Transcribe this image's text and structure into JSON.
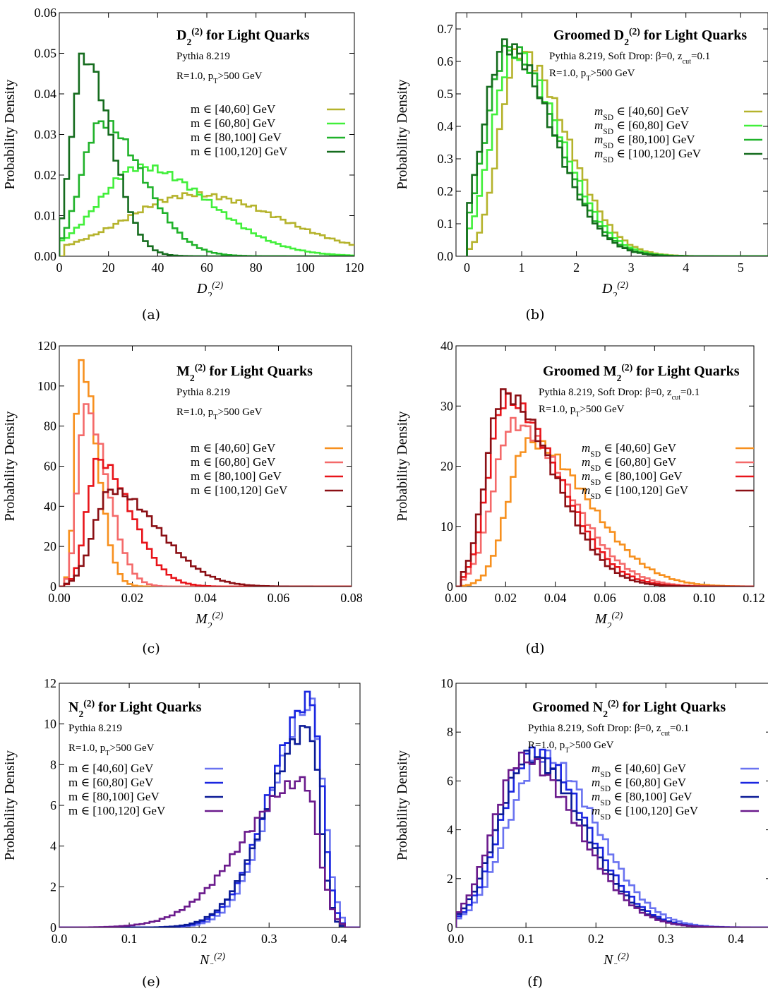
{
  "chart_data": [
    {
      "type": "line",
      "title": "D",
      "title_sup": "(2)",
      "title_sub": "2",
      "title_rest": " for Light Quarks",
      "info": [
        "Pythia 8.219",
        "R=1.0, p",
        "T",
        ">500 GeV"
      ],
      "xlabel": "D",
      "xlabel_sup": "(2)",
      "xlabel_sub": "2",
      "ylabel": "Probability Density",
      "xlim": [
        0,
        120
      ],
      "ylim": [
        0,
        0.06
      ],
      "xticks": [
        0,
        20,
        40,
        60,
        80,
        100,
        120
      ],
      "xtick_labels": [
        "0",
        "20",
        "40",
        "60",
        "80",
        "100",
        "120"
      ],
      "yticks": [
        0,
        0.01,
        0.02,
        0.03,
        0.04,
        0.05,
        0.06
      ],
      "ytick_labels": [
        "0.00",
        "0.01",
        "0.02",
        "0.03",
        "0.04",
        "0.05",
        "0.06"
      ],
      "caption": "(a)",
      "series": [
        {
          "name": "m ∈ [40,60] GeV",
          "color": "#b5b32c",
          "peak": 55,
          "width_l": 28,
          "width_r": 35,
          "height": 0.0152,
          "start": 2,
          "end": 120
        },
        {
          "name": "m ∈ [60,80] GeV",
          "color": "#41ef3a",
          "peak": 33,
          "width_l": 17,
          "width_r": 28,
          "height": 0.022,
          "start": 1,
          "end": 120
        },
        {
          "name": "m ∈ [80,100] GeV",
          "color": "#20b22a",
          "peak": 17,
          "width_l": 8,
          "width_r": 17,
          "height": 0.033,
          "start": 1,
          "end": 120
        },
        {
          "name": "m ∈ [100,120] GeV",
          "color": "#156c1e",
          "peak": 10,
          "width_l": 5,
          "width_r": 11,
          "height": 0.049,
          "start": 0,
          "end": 120
        }
      ]
    },
    {
      "type": "line",
      "title": "Groomed D",
      "title_sup": "(2)",
      "title_sub": "2",
      "title_rest": " for Light Quarks",
      "info": [
        "Pythia 8.219, Soft Drop: β=0, z",
        "cut",
        "=0.1",
        "R=1.0, p",
        "T",
        ">500 GeV"
      ],
      "xlabel": "D",
      "xlabel_sup": "(2)",
      "xlabel_sub": "2",
      "ylabel": "Probability Density",
      "xlim": [
        -0.2,
        5.5
      ],
      "ylim": [
        0,
        0.75
      ],
      "xticks": [
        0,
        1,
        2,
        3,
        4,
        5
      ],
      "xtick_labels": [
        "0",
        "1",
        "2",
        "3",
        "4",
        "5"
      ],
      "yticks": [
        0,
        0.1,
        0.2,
        0.3,
        0.4,
        0.5,
        0.6,
        0.7
      ],
      "ytick_labels": [
        "0.0",
        "0.1",
        "0.2",
        "0.3",
        "0.4",
        "0.5",
        "0.6",
        "0.7"
      ],
      "caption": "(b)",
      "series": [
        {
          "name": "m_SD ∈ [40,60] GeV",
          "color": "#b5b32c",
          "peak": 0.95,
          "width_l": 0.35,
          "width_r": 0.85,
          "height": 0.63,
          "start": 0,
          "end": 5.5
        },
        {
          "name": "m_SD ∈ [60,80] GeV",
          "color": "#41ef3a",
          "peak": 0.85,
          "width_l": 0.4,
          "width_r": 0.85,
          "height": 0.62,
          "start": 0,
          "end": 5.5
        },
        {
          "name": "m_SD ∈ [80,100] GeV",
          "color": "#20b22a",
          "peak": 0.75,
          "width_l": 0.4,
          "width_r": 0.85,
          "height": 0.64,
          "start": 0,
          "end": 5.5
        },
        {
          "name": "m_SD ∈ [100,120] GeV",
          "color": "#156c1e",
          "peak": 0.7,
          "width_l": 0.4,
          "width_r": 0.85,
          "height": 0.65,
          "start": 0,
          "end": 5.5
        }
      ]
    },
    {
      "type": "line",
      "title": "M",
      "title_sup": "(2)",
      "title_sub": "2",
      "title_rest": " for Light Quarks",
      "info": [
        "Pythia 8.219",
        "R=1.0, p",
        "T",
        ">500 GeV"
      ],
      "xlabel": "M",
      "xlabel_sup": "(2)",
      "xlabel_sub": "2",
      "ylabel": "Probability Density",
      "xlim": [
        0,
        0.08
      ],
      "ylim": [
        0,
        120
      ],
      "xticks": [
        0,
        0.02,
        0.04,
        0.06,
        0.08
      ],
      "xtick_labels": [
        "0.00",
        "0.02",
        "0.04",
        "0.06",
        "0.08"
      ],
      "yticks": [
        0,
        20,
        40,
        60,
        80,
        100,
        120
      ],
      "ytick_labels": [
        "0",
        "20",
        "40",
        "60",
        "80",
        "100",
        "120"
      ],
      "caption": "(c)",
      "series": [
        {
          "name": "m ∈ [40,60] GeV",
          "color": "#f7901e",
          "peak": 0.0058,
          "width_l": 0.0015,
          "width_r": 0.0045,
          "height": 112,
          "start": 0.001,
          "end": 0.08
        },
        {
          "name": "m ∈ [60,80] GeV",
          "color": "#f46a6a",
          "peak": 0.007,
          "width_l": 0.002,
          "width_r": 0.006,
          "height": 89,
          "start": 0.001,
          "end": 0.08
        },
        {
          "name": "m ∈ [80,100] GeV",
          "color": "#e8141a",
          "peak": 0.0105,
          "width_l": 0.003,
          "width_r": 0.009,
          "height": 63,
          "start": 0.001,
          "end": 0.08
        },
        {
          "name": "m ∈ [100,120] GeV",
          "color": "#8b0f14",
          "peak": 0.014,
          "width_l": 0.0045,
          "width_r": 0.013,
          "height": 48,
          "start": 0.001,
          "end": 0.08
        }
      ]
    },
    {
      "type": "line",
      "title": "Groomed M",
      "title_sup": "(2)",
      "title_sub": "2",
      "title_rest": " for Light Quarks",
      "info": [
        "Pythia 8.219, Soft Drop: β=0, z",
        "cut",
        "=0.1",
        "R=1.0, p",
        "T",
        ">500 GeV"
      ],
      "xlabel": "M",
      "xlabel_sup": "(2)",
      "xlabel_sub": "2",
      "ylabel": "Probability Density",
      "xlim": [
        0,
        0.12
      ],
      "ylim": [
        0,
        40
      ],
      "xticks": [
        0,
        0.02,
        0.04,
        0.06,
        0.08,
        0.1,
        0.12
      ],
      "xtick_labels": [
        "0.00",
        "0.02",
        "0.04",
        "0.06",
        "0.08",
        "0.10",
        "0.12"
      ],
      "yticks": [
        0,
        10,
        20,
        30,
        40
      ],
      "ytick_labels": [
        "0",
        "10",
        "20",
        "30",
        "40"
      ],
      "caption": "(d)",
      "series": [
        {
          "name": "m_SD ∈ [40,60] GeV",
          "color": "#f7901e",
          "peak": 0.029,
          "width_l": 0.008,
          "width_r": 0.024,
          "height": 24,
          "start": 0.002,
          "end": 0.12
        },
        {
          "name": "m_SD ∈ [60,80] GeV",
          "color": "#f46a6a",
          "peak": 0.023,
          "width_l": 0.008,
          "width_r": 0.022,
          "height": 27,
          "start": 0.002,
          "end": 0.12
        },
        {
          "name": "m_SD ∈ [80,100] GeV",
          "color": "#e8141a",
          "peak": 0.02,
          "width_l": 0.007,
          "width_r": 0.021,
          "height": 31,
          "start": 0.002,
          "end": 0.12
        },
        {
          "name": "m_SD ∈ [100,120] GeV",
          "color": "#8b0f14",
          "peak": 0.019,
          "width_l": 0.007,
          "width_r": 0.02,
          "height": 32,
          "start": 0.002,
          "end": 0.12
        }
      ]
    },
    {
      "type": "line",
      "title": "N",
      "title_sup": "(2)",
      "title_sub": "2",
      "title_rest": " for Light Quarks",
      "info": [
        "Pythia 8.219",
        "R=1.0, p",
        "T",
        ">500 GeV"
      ],
      "xlabel": "N",
      "xlabel_sup": "(2)",
      "xlabel_sub": "2",
      "ylabel": "Probability Density",
      "xlim": [
        0,
        0.43
      ],
      "ylim": [
        0,
        12
      ],
      "xticks": [
        0,
        0.1,
        0.2,
        0.3,
        0.4
      ],
      "xtick_labels": [
        "0.0",
        "0.1",
        "0.2",
        "0.3",
        "0.4"
      ],
      "yticks": [
        0,
        2,
        4,
        6,
        8,
        10,
        12
      ],
      "ytick_labels": [
        "0",
        "2",
        "4",
        "6",
        "8",
        "10",
        "12"
      ],
      "caption": "(e)",
      "series": [
        {
          "name": "m ∈ [40,60] GeV",
          "color": "#6a73f0",
          "peak": 0.36,
          "width_l": 0.055,
          "width_r": 0.018,
          "height": 10.9,
          "start": 0,
          "end": 0.41
        },
        {
          "name": "m ∈ [60,80] GeV",
          "color": "#1a26e0",
          "peak": 0.36,
          "width_l": 0.058,
          "width_r": 0.016,
          "height": 11.2,
          "start": 0,
          "end": 0.41
        },
        {
          "name": "m ∈ [80,100] GeV",
          "color": "#0b1a96",
          "peak": 0.358,
          "width_l": 0.06,
          "width_r": 0.015,
          "height": 9.8,
          "start": 0,
          "end": 0.41
        },
        {
          "name": "m ∈ [100,120] GeV",
          "color": "#6a1a8c",
          "peak": 0.35,
          "width_l": 0.085,
          "width_r": 0.02,
          "height": 7.2,
          "start": 0,
          "end": 0.41
        }
      ]
    },
    {
      "type": "line",
      "title": "Groomed N",
      "title_sup": "(2)",
      "title_sub": "2",
      "title_rest": " for Light Quarks",
      "info": [
        "Pythia 8.219, Soft Drop: β=0, z",
        "cut",
        "=0.1",
        "R=1.0, p",
        "T",
        ">500 GeV"
      ],
      "xlabel": "N",
      "xlabel_sup": "(2)",
      "xlabel_sub": "2",
      "ylabel": "Probability Density",
      "xlim": [
        0,
        0.45
      ],
      "ylim": [
        0,
        10
      ],
      "xticks": [
        0,
        0.1,
        0.2,
        0.3,
        0.4
      ],
      "xtick_labels": [
        "0.0",
        "0.1",
        "0.2",
        "0.3",
        "0.4"
      ],
      "yticks": [
        0,
        2,
        4,
        6,
        8,
        10
      ],
      "ytick_labels": [
        "0",
        "2",
        "4",
        "6",
        "8",
        "10"
      ],
      "caption": "(f)",
      "series": [
        {
          "name": "m_SD ∈ [40,60] GeV",
          "color": "#6a73f0",
          "peak": 0.125,
          "width_l": 0.05,
          "width_r": 0.075,
          "height": 7.0,
          "start": 0,
          "end": 0.42
        },
        {
          "name": "m_SD ∈ [60,80] GeV",
          "color": "#1a26e0",
          "peak": 0.11,
          "width_l": 0.045,
          "width_r": 0.075,
          "height": 7.2,
          "start": 0,
          "end": 0.42
        },
        {
          "name": "m_SD ∈ [80,100] GeV",
          "color": "#0b1a96",
          "peak": 0.105,
          "width_l": 0.045,
          "width_r": 0.075,
          "height": 7.0,
          "start": 0,
          "end": 0.42
        },
        {
          "name": "m_SD ∈ [100,120] GeV",
          "color": "#6a1a8c",
          "peak": 0.095,
          "width_l": 0.042,
          "width_r": 0.078,
          "height": 6.9,
          "start": 0,
          "end": 0.42
        }
      ]
    }
  ]
}
